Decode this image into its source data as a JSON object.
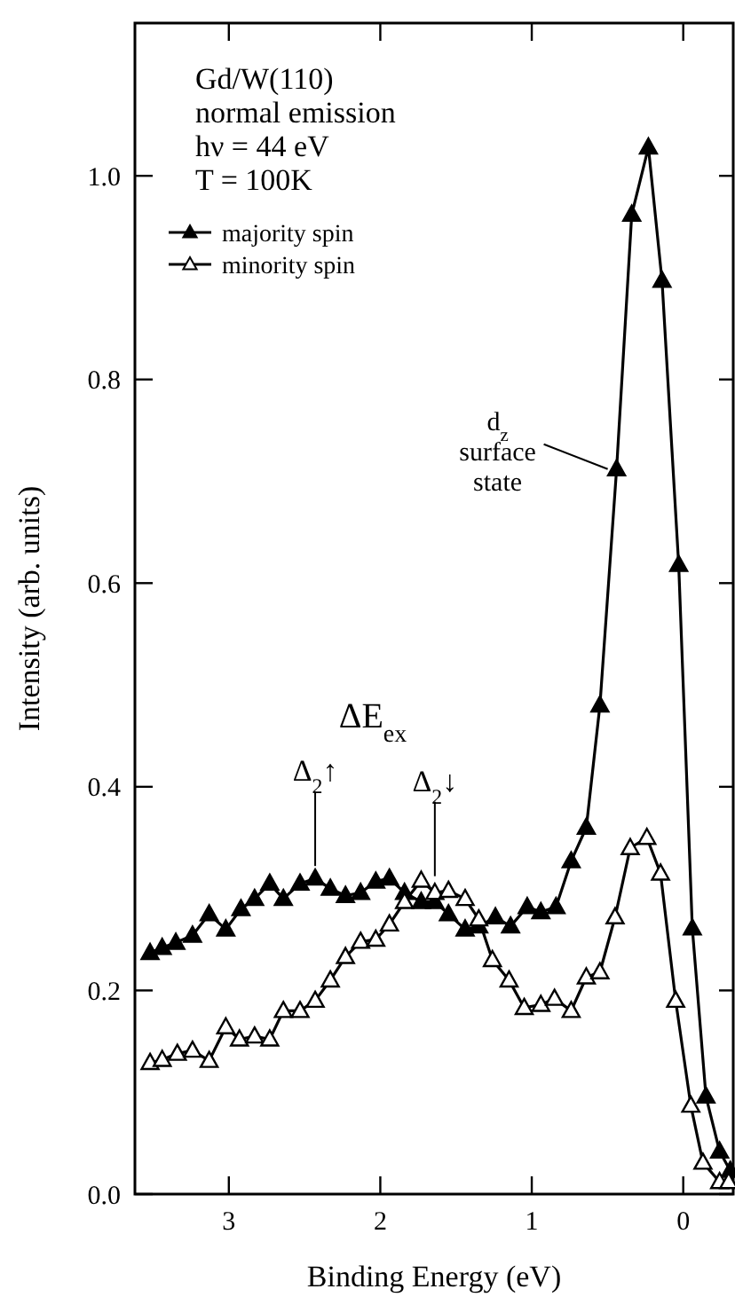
{
  "chart_data": {
    "type": "line",
    "xlabel": "Binding Energy (eV)",
    "ylabel": "Intensity (arb. units)",
    "xlim": [
      3.62,
      -0.33
    ],
    "xticks": [
      3,
      2,
      1,
      0
    ],
    "ylim": [
      0,
      1.15
    ],
    "yticks": [
      {
        "value": 0,
        "label": "0.0"
      },
      {
        "value": 0.2,
        "label": "0.2"
      },
      {
        "value": 0.4,
        "label": "0.4"
      },
      {
        "value": 0.6,
        "label": "0.6"
      },
      {
        "value": 0.8,
        "label": "0.8"
      },
      {
        "value": 1,
        "label": "1.0"
      }
    ],
    "grid": false,
    "legend": "top left",
    "marker": "triangle",
    "line_style": "solid",
    "series": [
      {
        "name": "majority spin",
        "color": "#000000",
        "x": [
          3.52,
          3.44,
          3.35,
          3.24,
          3.13,
          3.02,
          2.92,
          2.83,
          2.73,
          2.64,
          2.53,
          2.43,
          2.33,
          2.23,
          2.13,
          2.03,
          1.94,
          1.84,
          1.73,
          1.64,
          1.55,
          1.44,
          1.35,
          1.24,
          1.14,
          1.03,
          0.94,
          0.84,
          0.74,
          0.64,
          0.55,
          0.44,
          0.34,
          0.23,
          0.14,
          0.03,
          -0.06,
          -0.15,
          -0.24,
          -0.31
        ],
        "values": [
          0.237,
          0.242,
          0.247,
          0.254,
          0.275,
          0.26,
          0.28,
          0.29,
          0.305,
          0.29,
          0.305,
          0.31,
          0.3,
          0.293,
          0.296,
          0.307,
          0.31,
          0.296,
          0.287,
          0.287,
          0.275,
          0.26,
          0.263,
          0.272,
          0.263,
          0.282,
          0.277,
          0.282,
          0.327,
          0.36,
          0.48,
          0.712,
          0.962,
          1.028,
          0.897,
          0.618,
          0.261,
          0.096,
          0.042,
          0.023
        ]
      },
      {
        "name": "minority spin",
        "color": "#000000",
        "x": [
          3.52,
          3.44,
          3.34,
          3.24,
          3.13,
          3.02,
          2.93,
          2.83,
          2.73,
          2.64,
          2.53,
          2.43,
          2.33,
          2.23,
          2.13,
          2.03,
          1.94,
          1.84,
          1.73,
          1.64,
          1.55,
          1.44,
          1.35,
          1.26,
          1.15,
          1.05,
          0.94,
          0.85,
          0.74,
          0.64,
          0.55,
          0.45,
          0.35,
          0.24,
          0.15,
          0.05,
          -0.05,
          -0.13,
          -0.24,
          -0.3
        ],
        "values": [
          0.129,
          0.132,
          0.138,
          0.141,
          0.131,
          0.164,
          0.152,
          0.155,
          0.152,
          0.18,
          0.18,
          0.19,
          0.21,
          0.233,
          0.248,
          0.25,
          0.265,
          0.287,
          0.308,
          0.296,
          0.298,
          0.29,
          0.27,
          0.23,
          0.21,
          0.183,
          0.186,
          0.192,
          0.18,
          0.213,
          0.218,
          0.272,
          0.34,
          0.35,
          0.315,
          0.19,
          0.087,
          0.031,
          0.012,
          0.012
        ]
      }
    ],
    "annotations": [
      "Gd/W(110)",
      "normal emission",
      "hν = 44 eV",
      "T = 100K",
      "ΔE$_{ex}$",
      {
        "text": "Δ$_{2}$↑",
        "x": 2.43,
        "y": 0.31
      },
      {
        "text": "Δ$_{2}$↓",
        "x": 1.64,
        "y": 0.3
      },
      {
        "text": "d$_{z}$ surface state",
        "x": 0.44,
        "y": 0.712
      }
    ]
  }
}
